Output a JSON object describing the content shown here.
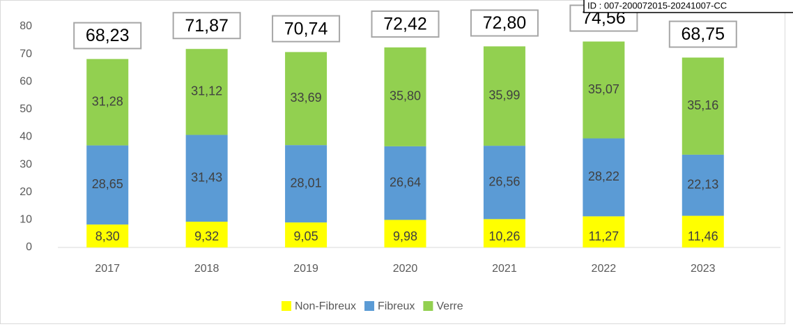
{
  "chart_data": {
    "type": "bar",
    "stacked": true,
    "stamp": "ID : 007-200072015-20241007-CC",
    "categories": [
      "2017",
      "2018",
      "2019",
      "2020",
      "2021",
      "2022",
      "2023"
    ],
    "series": [
      {
        "name": "Non-Fibreux",
        "color": "#ffff00",
        "values": [
          8.3,
          9.32,
          9.05,
          9.98,
          10.26,
          11.27,
          11.46
        ],
        "value_labels": [
          "8,30",
          "9,32",
          "9,05",
          "9,98",
          "10,26",
          "11,27",
          "11,46"
        ]
      },
      {
        "name": "Fibreux",
        "color": "#5b9bd5",
        "values": [
          28.65,
          31.43,
          28.01,
          26.64,
          26.56,
          28.22,
          22.13
        ],
        "value_labels": [
          "28,65",
          "31,43",
          "28,01",
          "26,64",
          "26,56",
          "28,22",
          "22,13"
        ]
      },
      {
        "name": "Verre",
        "color": "#92d050",
        "values": [
          31.28,
          31.12,
          33.69,
          35.8,
          35.99,
          35.07,
          35.16
        ],
        "value_labels": [
          "31,28",
          "31,12",
          "33,69",
          "35,80",
          "35,99",
          "35,07",
          "35,16"
        ]
      }
    ],
    "totals": [
      68.23,
      71.87,
      70.74,
      72.42,
      72.8,
      74.56,
      68.75
    ],
    "total_labels": [
      "68,23",
      "71,87",
      "70,74",
      "72,42",
      "72,80",
      "74,56",
      "68,75"
    ],
    "ylim": [
      0,
      80
    ],
    "yticks": [
      0,
      10,
      20,
      30,
      40,
      50,
      60,
      70,
      80
    ],
    "grid": false,
    "legend": "bottom"
  }
}
